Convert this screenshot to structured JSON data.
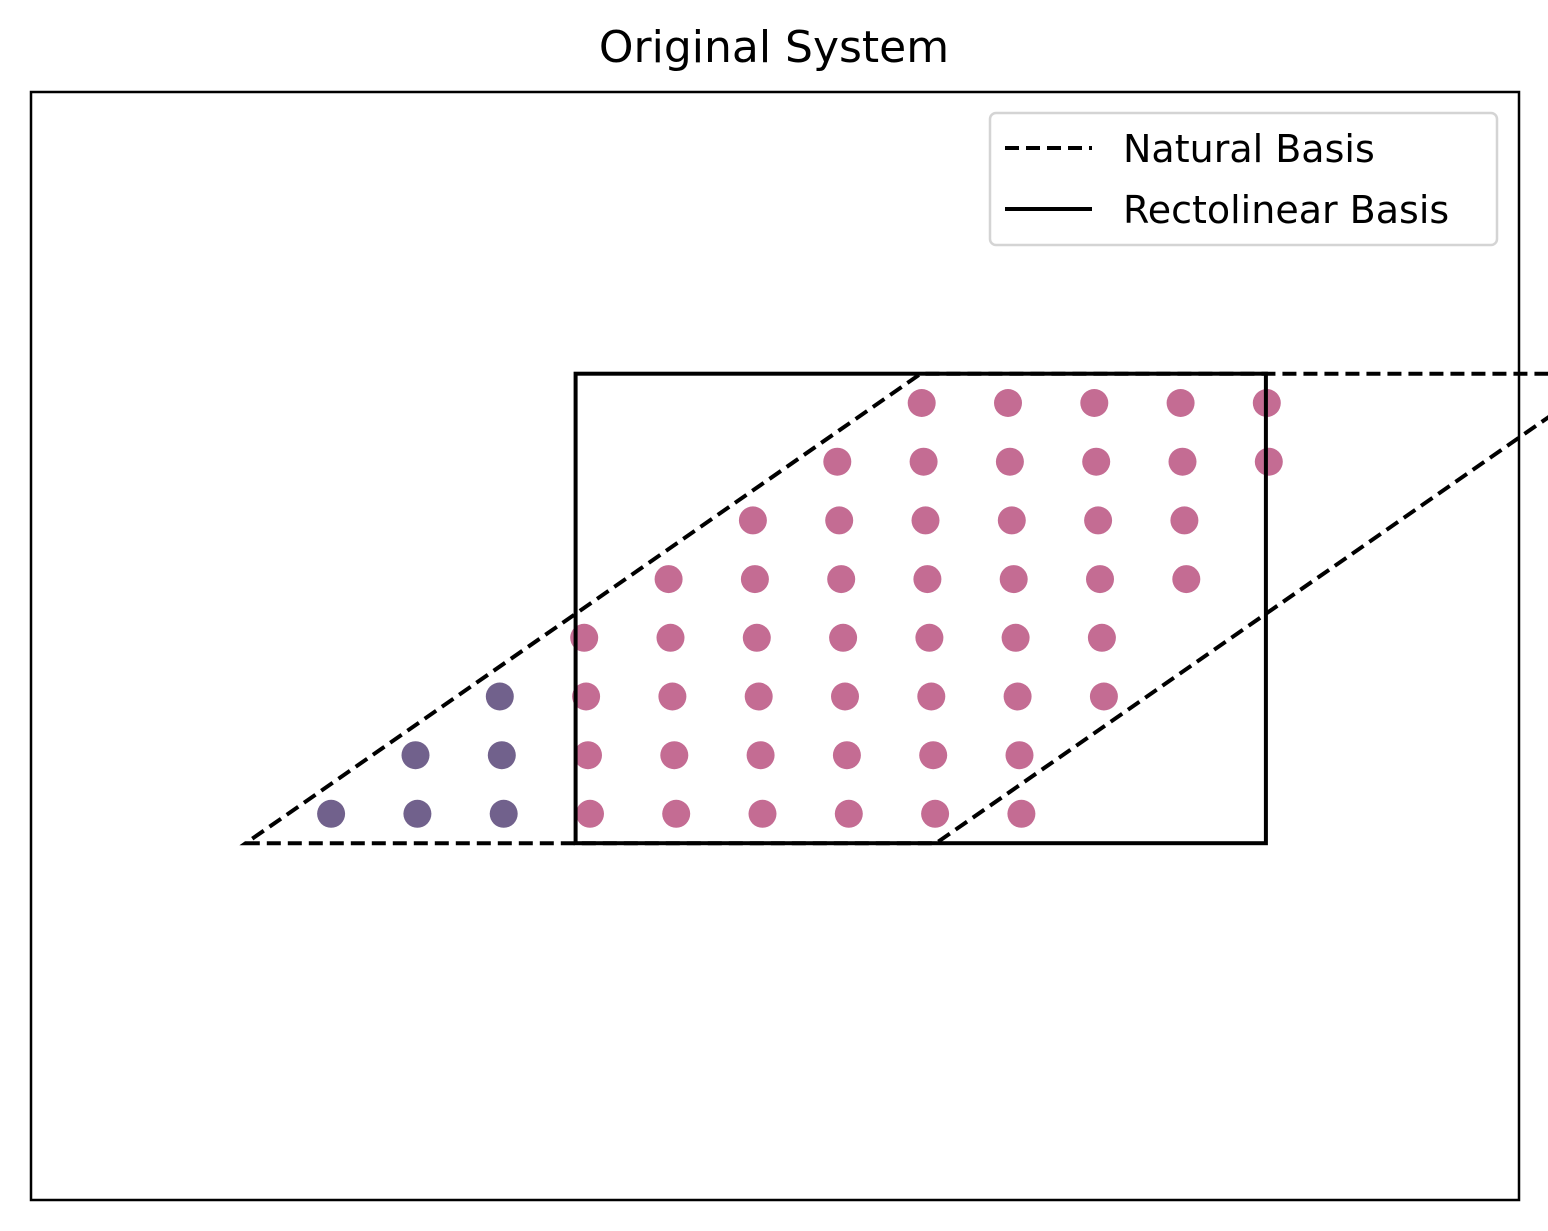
{
  "chart_data": {
    "type": "scatter",
    "title": "Original System",
    "xlabel": "",
    "ylabel": "",
    "xlim": [
      -1.4,
      8.3
    ],
    "ylim": [
      -1.9,
      4.0
    ],
    "axis_ticks": "none",
    "grid": false,
    "legend": {
      "placement": "top-right",
      "entries": [
        {
          "label": "Natural Basis",
          "style": "dashed"
        },
        {
          "label": "Rectolinear Basis",
          "style": "solid"
        }
      ]
    },
    "colors": {
      "inside": "#c46c93",
      "outside": "#71618c",
      "line": "#000000"
    },
    "natural_basis": {
      "origin": [
        0,
        0
      ],
      "vectors": [
        [
          4.5,
          0
        ],
        [
          4.4,
          2.5
        ]
      ]
    },
    "rectolinear_basis": {
      "origin": [
        2.15,
        0
      ],
      "width": 4.5,
      "height": 2.5
    },
    "lattice": {
      "rows": 8,
      "cols": 11,
      "u_step": 0.5625,
      "v_step": 0.3125,
      "u_offset": 0.28125,
      "v_offset": 0.15625
    },
    "series": [
      {
        "name": "inside",
        "color": "#c46c93"
      },
      {
        "name": "outside",
        "color": "#71618c"
      }
    ]
  }
}
